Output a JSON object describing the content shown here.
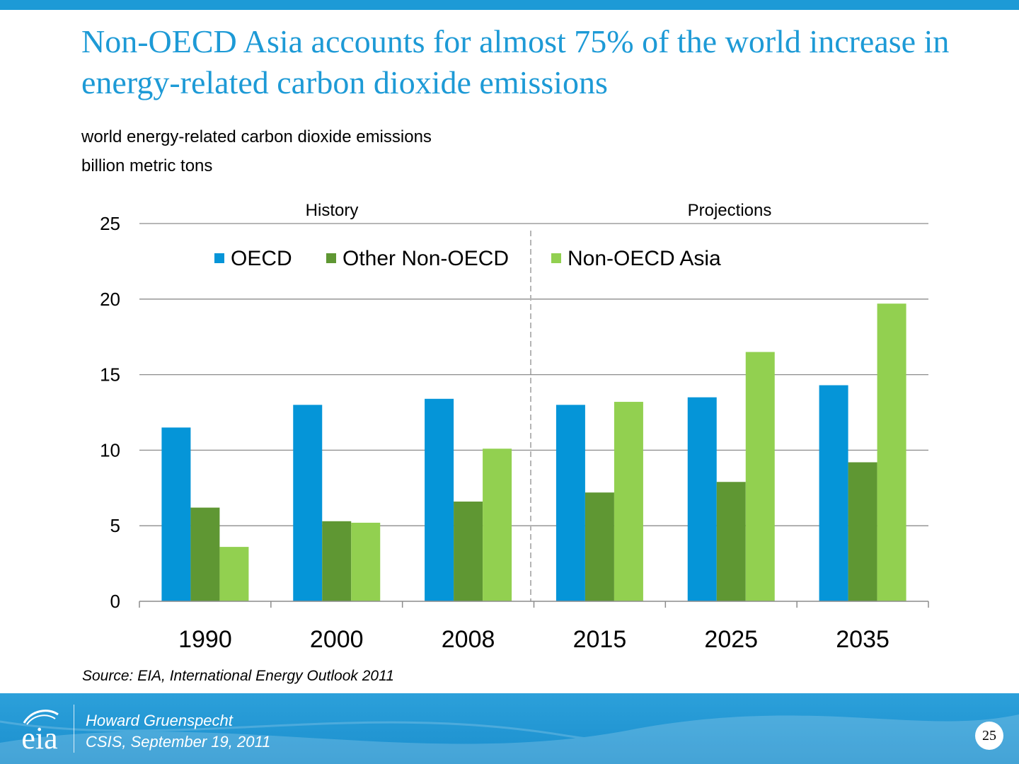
{
  "slide": {
    "title": "Non-OECD Asia accounts for almost 75% of the world increase in energy-related carbon dioxide emissions",
    "subtitle_line1": "world energy-related carbon dioxide emissions",
    "subtitle_line2": "billion metric tons",
    "source": "Source:  EIA, International Energy Outlook 2011",
    "accent_color": "#1d9ad6"
  },
  "footer": {
    "logo_text": "eia",
    "presenter": "Howard Gruenspecht",
    "event": "CSIS, September 19, 2011",
    "page_number": "25"
  },
  "chart_data": {
    "type": "bar",
    "categories": [
      "1990",
      "2000",
      "2008",
      "2015",
      "2025",
      "2035"
    ],
    "series": [
      {
        "name": "OECD",
        "color": "#0595d8",
        "values": [
          11.5,
          13.0,
          13.4,
          13.0,
          13.5,
          14.3
        ]
      },
      {
        "name": "Other Non-OECD",
        "color": "#5f9733",
        "values": [
          6.2,
          5.3,
          6.6,
          7.2,
          7.9,
          9.2
        ]
      },
      {
        "name": "Non-OECD Asia",
        "color": "#92d050",
        "values": [
          3.6,
          5.2,
          10.1,
          13.2,
          16.5,
          19.7
        ]
      }
    ],
    "ylim": [
      0,
      25
    ],
    "yticks": [
      "0",
      "5",
      "10",
      "15",
      "20",
      "25"
    ],
    "grid": true,
    "legend_position": "top",
    "period_labels": {
      "history": "History",
      "projections": "Projections"
    }
  }
}
